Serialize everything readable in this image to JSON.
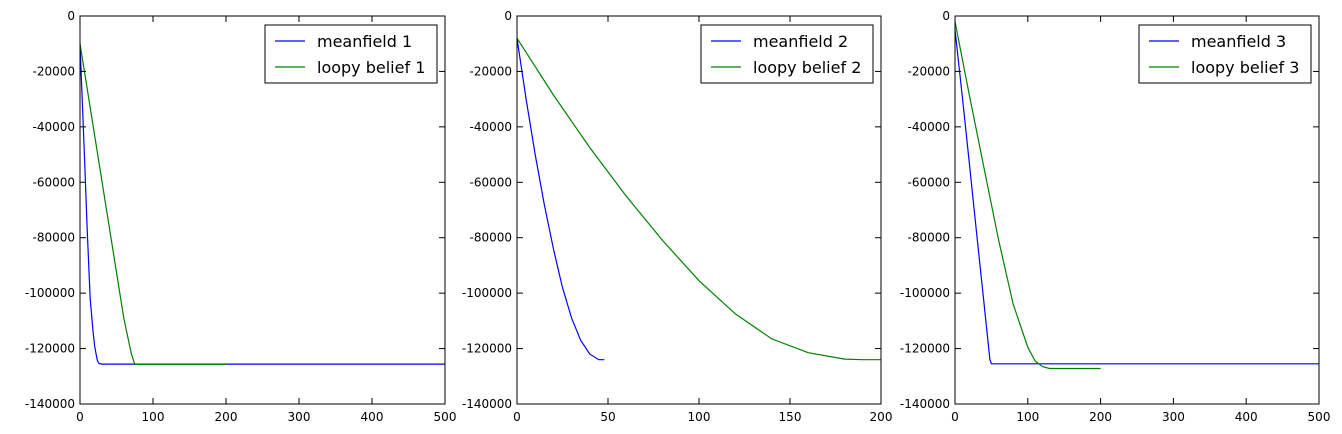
{
  "chart_data": [
    {
      "type": "line",
      "title": "",
      "xlabel": "",
      "ylabel": "",
      "xlim": [
        0,
        500
      ],
      "ylim": [
        -140000,
        0
      ],
      "xticks": [
        0,
        100,
        200,
        300,
        400,
        500
      ],
      "yticks": [
        0,
        -20000,
        -40000,
        -60000,
        -80000,
        -100000,
        -120000,
        -140000
      ],
      "grid": false,
      "legend_position": "top-right",
      "series": [
        {
          "name": "meanfield 1",
          "color": "#0000ff",
          "x": [
            0,
            3,
            6,
            10,
            14,
            18,
            20,
            22,
            24,
            26,
            30,
            40,
            100,
            200,
            300,
            400,
            500
          ],
          "y": [
            -10000,
            -30000,
            -50000,
            -78000,
            -102000,
            -114000,
            -119000,
            -122000,
            -124500,
            -125400,
            -125600,
            -125600,
            -125600,
            -125600,
            -125600,
            -125600,
            -125600
          ]
        },
        {
          "name": "loopy belief 1",
          "color": "#008000",
          "x": [
            0,
            10,
            20,
            30,
            40,
            50,
            60,
            70,
            75,
            80,
            100,
            150,
            200
          ],
          "y": [
            -10000,
            -26500,
            -43000,
            -59500,
            -76000,
            -92500,
            -109000,
            -121500,
            -125700,
            -125700,
            -125700,
            -125700,
            -125700
          ]
        }
      ]
    },
    {
      "type": "line",
      "title": "",
      "xlabel": "",
      "ylabel": "",
      "xlim": [
        0,
        200
      ],
      "ylim": [
        -140000,
        0
      ],
      "xticks": [
        0,
        50,
        100,
        150,
        200
      ],
      "yticks": [
        0,
        -20000,
        -40000,
        -60000,
        -80000,
        -100000,
        -120000,
        -140000
      ],
      "grid": false,
      "legend_position": "top-right",
      "series": [
        {
          "name": "meanfield 2",
          "color": "#0000ff",
          "x": [
            0,
            5,
            10,
            15,
            20,
            25,
            30,
            35,
            40,
            45,
            48
          ],
          "y": [
            -8000,
            -30000,
            -50000,
            -68000,
            -84000,
            -98000,
            -109000,
            -117000,
            -122000,
            -124000,
            -124000
          ]
        },
        {
          "name": "loopy belief 2",
          "color": "#008000",
          "x": [
            0,
            20,
            40,
            60,
            80,
            100,
            120,
            140,
            160,
            180,
            190,
            200
          ],
          "y": [
            -8000,
            -28500,
            -47500,
            -65000,
            -81000,
            -95500,
            -107500,
            -116500,
            -121500,
            -123800,
            -124000,
            -124000
          ]
        }
      ]
    },
    {
      "type": "line",
      "title": "",
      "xlabel": "",
      "ylabel": "",
      "xlim": [
        0,
        500
      ],
      "ylim": [
        -140000,
        0
      ],
      "xticks": [
        0,
        100,
        200,
        300,
        400,
        500
      ],
      "yticks": [
        0,
        -20000,
        -40000,
        -60000,
        -80000,
        -100000,
        -120000,
        -140000
      ],
      "grid": false,
      "legend_position": "top-right",
      "series": [
        {
          "name": "meanfield 3",
          "color": "#0000ff",
          "x": [
            0,
            10,
            20,
            30,
            40,
            48,
            50,
            100,
            200,
            300,
            400,
            500
          ],
          "y": [
            -5000,
            -29000,
            -54000,
            -79000,
            -104000,
            -124000,
            -125500,
            -125500,
            -125500,
            -125500,
            -125500,
            -125500
          ]
        },
        {
          "name": "loopy belief 3",
          "color": "#008000",
          "x": [
            0,
            20,
            40,
            60,
            80,
            100,
            110,
            120,
            130,
            150,
            200
          ],
          "y": [
            -2000,
            -29000,
            -55000,
            -81000,
            -104000,
            -119500,
            -124500,
            -126500,
            -127200,
            -127200,
            -127200
          ]
        }
      ]
    }
  ]
}
